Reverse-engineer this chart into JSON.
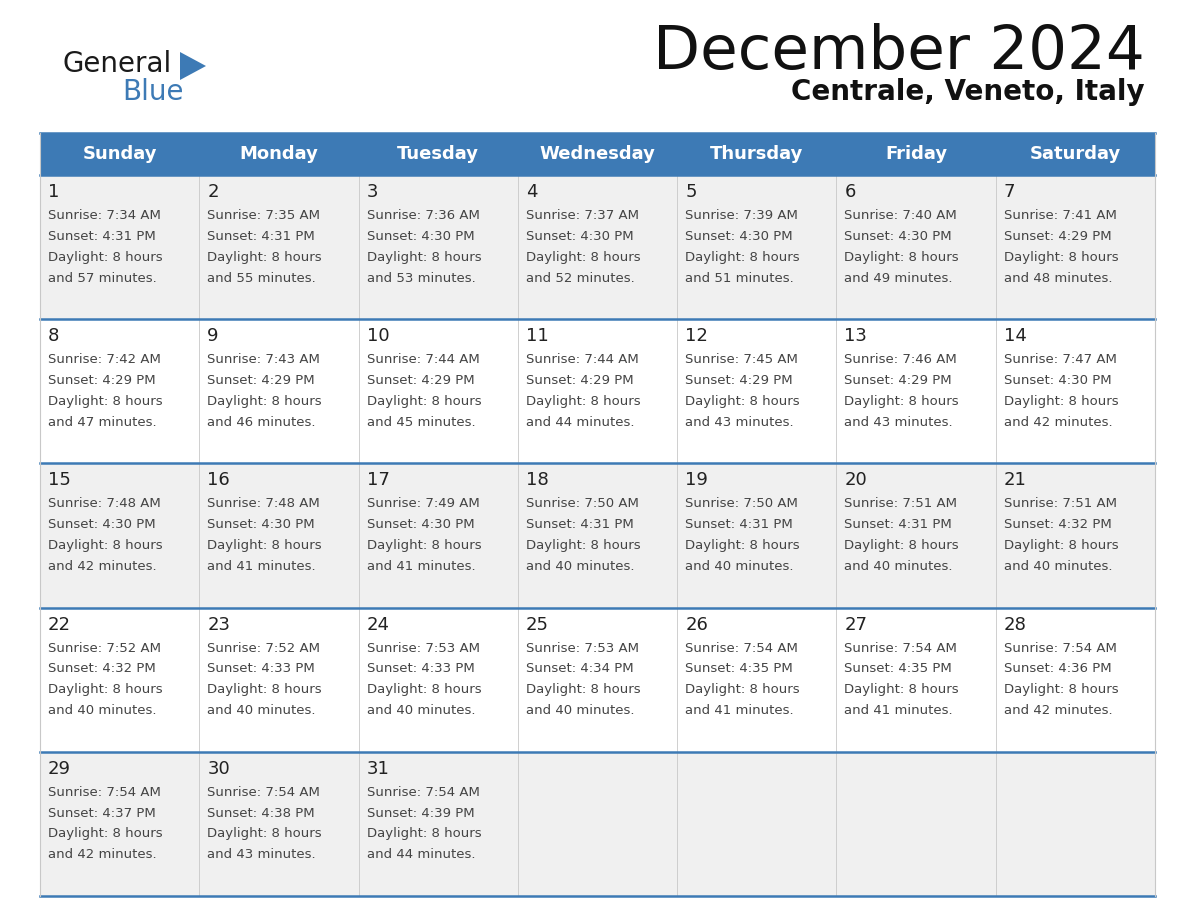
{
  "title": "December 2024",
  "subtitle": "Centrale, Veneto, Italy",
  "days_of_week": [
    "Sunday",
    "Monday",
    "Tuesday",
    "Wednesday",
    "Thursday",
    "Friday",
    "Saturday"
  ],
  "header_bg": "#3d7ab5",
  "header_text": "#ffffff",
  "row_bg_even": "#f0f0f0",
  "row_bg_odd": "#ffffff",
  "divider_color": "#3d7ab5",
  "cell_text_color": "#444444",
  "day_number_color": "#222222",
  "logo_triangle_color": "#3d7ab5",
  "weeks": [
    [
      {
        "day": 1,
        "sunrise": "7:34 AM",
        "sunset": "4:31 PM",
        "daylight": "8 hours",
        "daylight2": "and 57 minutes."
      },
      {
        "day": 2,
        "sunrise": "7:35 AM",
        "sunset": "4:31 PM",
        "daylight": "8 hours",
        "daylight2": "and 55 minutes."
      },
      {
        "day": 3,
        "sunrise": "7:36 AM",
        "sunset": "4:30 PM",
        "daylight": "8 hours",
        "daylight2": "and 53 minutes."
      },
      {
        "day": 4,
        "sunrise": "7:37 AM",
        "sunset": "4:30 PM",
        "daylight": "8 hours",
        "daylight2": "and 52 minutes."
      },
      {
        "day": 5,
        "sunrise": "7:39 AM",
        "sunset": "4:30 PM",
        "daylight": "8 hours",
        "daylight2": "and 51 minutes."
      },
      {
        "day": 6,
        "sunrise": "7:40 AM",
        "sunset": "4:30 PM",
        "daylight": "8 hours",
        "daylight2": "and 49 minutes."
      },
      {
        "day": 7,
        "sunrise": "7:41 AM",
        "sunset": "4:29 PM",
        "daylight": "8 hours",
        "daylight2": "and 48 minutes."
      }
    ],
    [
      {
        "day": 8,
        "sunrise": "7:42 AM",
        "sunset": "4:29 PM",
        "daylight": "8 hours",
        "daylight2": "and 47 minutes."
      },
      {
        "day": 9,
        "sunrise": "7:43 AM",
        "sunset": "4:29 PM",
        "daylight": "8 hours",
        "daylight2": "and 46 minutes."
      },
      {
        "day": 10,
        "sunrise": "7:44 AM",
        "sunset": "4:29 PM",
        "daylight": "8 hours",
        "daylight2": "and 45 minutes."
      },
      {
        "day": 11,
        "sunrise": "7:44 AM",
        "sunset": "4:29 PM",
        "daylight": "8 hours",
        "daylight2": "and 44 minutes."
      },
      {
        "day": 12,
        "sunrise": "7:45 AM",
        "sunset": "4:29 PM",
        "daylight": "8 hours",
        "daylight2": "and 43 minutes."
      },
      {
        "day": 13,
        "sunrise": "7:46 AM",
        "sunset": "4:29 PM",
        "daylight": "8 hours",
        "daylight2": "and 43 minutes."
      },
      {
        "day": 14,
        "sunrise": "7:47 AM",
        "sunset": "4:30 PM",
        "daylight": "8 hours",
        "daylight2": "and 42 minutes."
      }
    ],
    [
      {
        "day": 15,
        "sunrise": "7:48 AM",
        "sunset": "4:30 PM",
        "daylight": "8 hours",
        "daylight2": "and 42 minutes."
      },
      {
        "day": 16,
        "sunrise": "7:48 AM",
        "sunset": "4:30 PM",
        "daylight": "8 hours",
        "daylight2": "and 41 minutes."
      },
      {
        "day": 17,
        "sunrise": "7:49 AM",
        "sunset": "4:30 PM",
        "daylight": "8 hours",
        "daylight2": "and 41 minutes."
      },
      {
        "day": 18,
        "sunrise": "7:50 AM",
        "sunset": "4:31 PM",
        "daylight": "8 hours",
        "daylight2": "and 40 minutes."
      },
      {
        "day": 19,
        "sunrise": "7:50 AM",
        "sunset": "4:31 PM",
        "daylight": "8 hours",
        "daylight2": "and 40 minutes."
      },
      {
        "day": 20,
        "sunrise": "7:51 AM",
        "sunset": "4:31 PM",
        "daylight": "8 hours",
        "daylight2": "and 40 minutes."
      },
      {
        "day": 21,
        "sunrise": "7:51 AM",
        "sunset": "4:32 PM",
        "daylight": "8 hours",
        "daylight2": "and 40 minutes."
      }
    ],
    [
      {
        "day": 22,
        "sunrise": "7:52 AM",
        "sunset": "4:32 PM",
        "daylight": "8 hours",
        "daylight2": "and 40 minutes."
      },
      {
        "day": 23,
        "sunrise": "7:52 AM",
        "sunset": "4:33 PM",
        "daylight": "8 hours",
        "daylight2": "and 40 minutes."
      },
      {
        "day": 24,
        "sunrise": "7:53 AM",
        "sunset": "4:33 PM",
        "daylight": "8 hours",
        "daylight2": "and 40 minutes."
      },
      {
        "day": 25,
        "sunrise": "7:53 AM",
        "sunset": "4:34 PM",
        "daylight": "8 hours",
        "daylight2": "and 40 minutes."
      },
      {
        "day": 26,
        "sunrise": "7:54 AM",
        "sunset": "4:35 PM",
        "daylight": "8 hours",
        "daylight2": "and 41 minutes."
      },
      {
        "day": 27,
        "sunrise": "7:54 AM",
        "sunset": "4:35 PM",
        "daylight": "8 hours",
        "daylight2": "and 41 minutes."
      },
      {
        "day": 28,
        "sunrise": "7:54 AM",
        "sunset": "4:36 PM",
        "daylight": "8 hours",
        "daylight2": "and 42 minutes."
      }
    ],
    [
      {
        "day": 29,
        "sunrise": "7:54 AM",
        "sunset": "4:37 PM",
        "daylight": "8 hours",
        "daylight2": "and 42 minutes."
      },
      {
        "day": 30,
        "sunrise": "7:54 AM",
        "sunset": "4:38 PM",
        "daylight": "8 hours",
        "daylight2": "and 43 minutes."
      },
      {
        "day": 31,
        "sunrise": "7:54 AM",
        "sunset": "4:39 PM",
        "daylight": "8 hours",
        "daylight2": "and 44 minutes."
      },
      null,
      null,
      null,
      null
    ]
  ]
}
